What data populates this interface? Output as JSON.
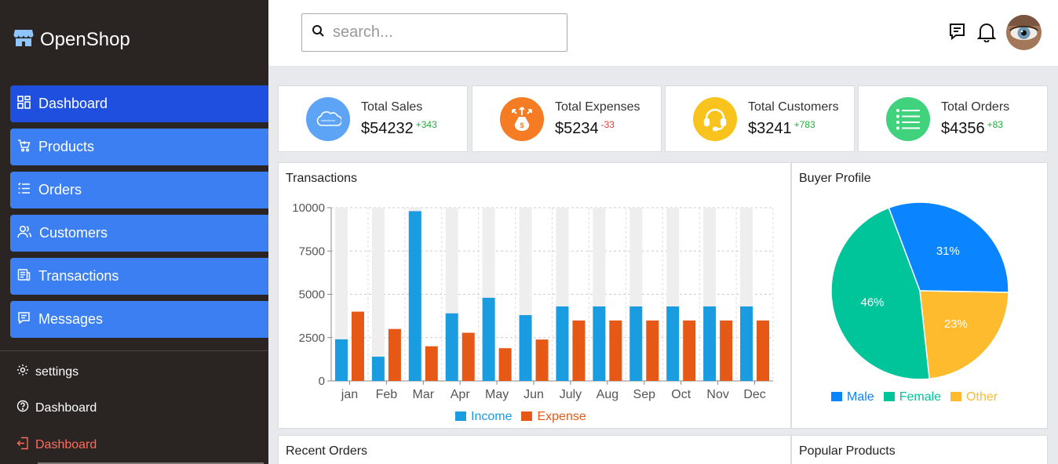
{
  "app": {
    "name": "OpenShop"
  },
  "sidebar": {
    "items": [
      {
        "label": "Dashboard",
        "icon": "dashboard-icon"
      },
      {
        "label": "Products",
        "icon": "cart-icon"
      },
      {
        "label": "Orders",
        "icon": "list-icon"
      },
      {
        "label": "Customers",
        "icon": "users-icon"
      },
      {
        "label": "Transactions",
        "icon": "receipt-icon"
      },
      {
        "label": "Messages",
        "icon": "message-icon"
      }
    ],
    "bottom": [
      {
        "label": "settings",
        "icon": "gear-icon"
      },
      {
        "label": "Dashboard",
        "icon": "help-icon"
      },
      {
        "label": "Dashboard",
        "icon": "logout-icon"
      }
    ]
  },
  "header": {
    "search_placeholder": "search...",
    "icons": [
      "chat-icon",
      "bell-icon"
    ]
  },
  "stats": [
    {
      "label": "Total Sales",
      "value": "$54232",
      "delta": "+343",
      "trend": "up",
      "color": "#5da4f6",
      "icon": "salesforce-icon"
    },
    {
      "label": "Total Expenses",
      "value": "$5234",
      "delta": "-33",
      "trend": "down",
      "color": "#f57c22",
      "icon": "money-bag-icon"
    },
    {
      "label": "Total Customers",
      "value": "$3241",
      "delta": "+783",
      "trend": "up",
      "color": "#f8c31c",
      "icon": "headset-icon"
    },
    {
      "label": "Total Orders",
      "value": "$4356",
      "delta": "+83",
      "trend": "up",
      "color": "#40d27d",
      "icon": "list-icon"
    }
  ],
  "panels": {
    "transactions_title": "Transactions",
    "buyer_title": "Buyer Profile",
    "recent_title": "Recent Orders",
    "popular_title": "Popular Products"
  },
  "chart_data": [
    {
      "type": "bar",
      "title": "Transactions",
      "categories": [
        "jan",
        "Feb",
        "Mar",
        "Apr",
        "May",
        "Jun",
        "July",
        "Aug",
        "Sep",
        "Oct",
        "Nov",
        "Dec"
      ],
      "series": [
        {
          "name": "Income",
          "color": "#1a9de0",
          "values": [
            2400,
            1400,
            9800,
            3900,
            4800,
            3800,
            4300,
            4300,
            4300,
            4300,
            4300,
            4300
          ]
        },
        {
          "name": "Expense",
          "color": "#e65815",
          "values": [
            4000,
            3000,
            2000,
            2780,
            1890,
            2390,
            3490,
            3490,
            3490,
            3490,
            3490,
            3490
          ]
        }
      ],
      "background_bar_value": 10000,
      "yticks": [
        0,
        2500,
        5000,
        7500,
        10000
      ],
      "ylim": [
        0,
        10000
      ],
      "grid": true,
      "legend": "bottom-center"
    },
    {
      "type": "pie",
      "title": "Buyer Profile",
      "slices": [
        {
          "name": "Male",
          "value": 31,
          "label": "31%",
          "color": "#0a84ff"
        },
        {
          "name": "Other",
          "value": 23,
          "label": "23%",
          "color": "#fdbb2d"
        },
        {
          "name": "Female",
          "value": 46,
          "label": "46%",
          "color": "#00c49a"
        }
      ],
      "legend_order": [
        "Male",
        "Female",
        "Other"
      ],
      "legend": "bottom-center"
    }
  ]
}
